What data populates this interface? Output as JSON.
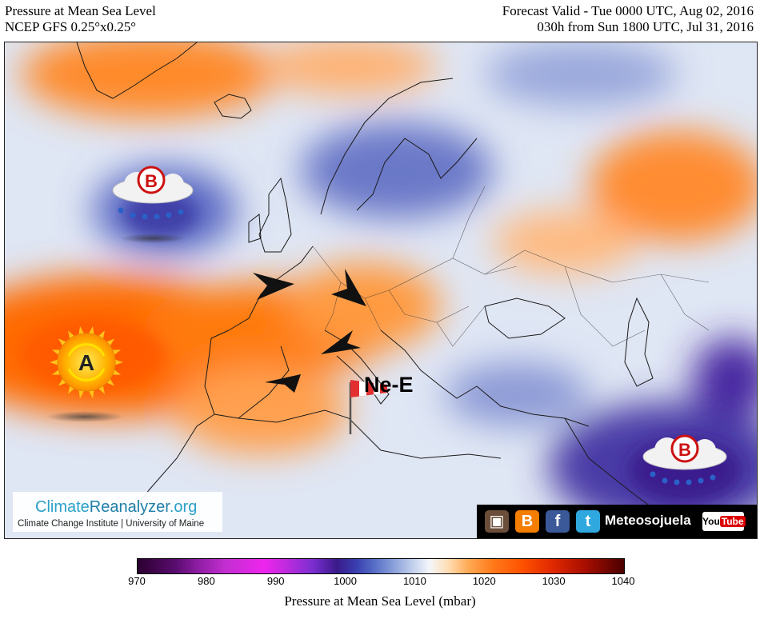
{
  "header": {
    "title_left": "Pressure at Mean Sea Level",
    "model_left": "NCEP GFS 0.25°x0.25°",
    "valid_right": "Forecast Valid - Tue 0000 UTC, Aug 02, 2016",
    "run_right": "030h from Sun 1800 UTC, Jul 31, 2016"
  },
  "map": {
    "high_label": "A",
    "low_label": "B",
    "wind_label": "Ne-E"
  },
  "credits": {
    "logo_a": "Climate",
    "logo_b": "Reanalyzer",
    "logo_c": ".org",
    "subtitle": "Climate Change Institute | University of Maine"
  },
  "social": {
    "name": "Meteosojuela",
    "youtube_a": "You",
    "youtube_b": "Tube"
  },
  "colorbar": {
    "ticks": [
      "970",
      "980",
      "990",
      "1000",
      "1010",
      "1020",
      "1030",
      "1040"
    ],
    "title": "Pressure at Mean Sea Level (mbar)"
  }
}
